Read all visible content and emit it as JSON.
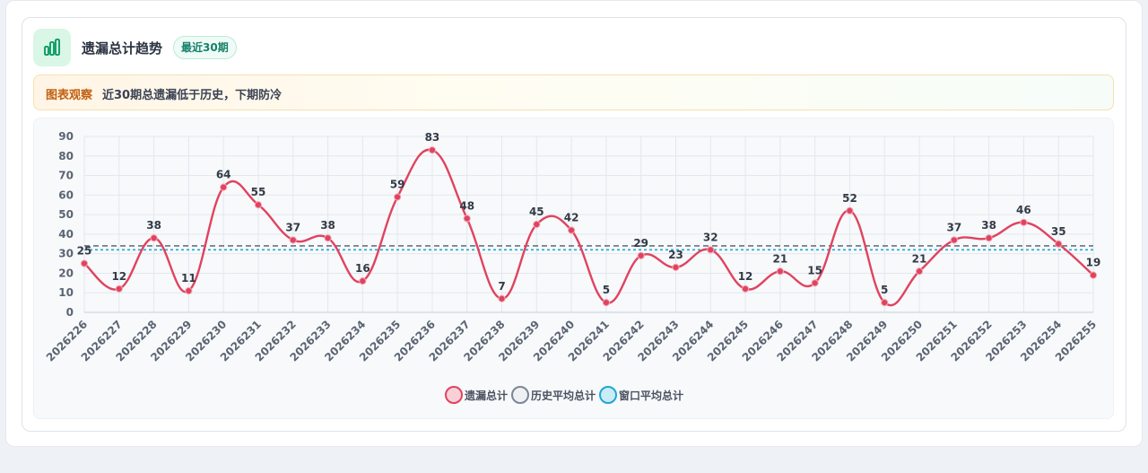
{
  "header": {
    "title": "遗漏总计趋势",
    "badge": "最近30期",
    "icon": "bar-chart-icon"
  },
  "observation": {
    "label": "图表观察",
    "text": "近30期总遗漏低于历史，下期防冷"
  },
  "legend": [
    {
      "name": "遗漏总计",
      "fill": "#f9d0d8",
      "stroke": "#e0435f"
    },
    {
      "name": "历史平均总计",
      "fill": "#eef0f4",
      "stroke": "#7d8594"
    },
    {
      "name": "窗口平均总计",
      "fill": "#c9ecf7",
      "stroke": "#1ea7d6"
    }
  ],
  "chart_data": {
    "type": "line",
    "categories": [
      "2026226",
      "2026227",
      "2026228",
      "2026229",
      "2026230",
      "2026231",
      "2026232",
      "2026233",
      "2026234",
      "2026235",
      "2026236",
      "2026237",
      "2026238",
      "2026239",
      "2026240",
      "2026241",
      "2026242",
      "2026243",
      "2026244",
      "2026245",
      "2026246",
      "2026247",
      "2026248",
      "2026249",
      "2026250",
      "2026251",
      "2026252",
      "2026253",
      "2026254",
      "2026255"
    ],
    "series": [
      {
        "name": "遗漏总计",
        "color": "#e0435f",
        "values": [
          25,
          12,
          38,
          11,
          64,
          55,
          37,
          38,
          16,
          59,
          83,
          48,
          7,
          45,
          42,
          5,
          29,
          23,
          32,
          12,
          21,
          15,
          52,
          5,
          21,
          37,
          38,
          46,
          35,
          19
        ]
      },
      {
        "name": "历史平均总计",
        "color": "#6b7280",
        "constant": 34
      },
      {
        "name": "窗口平均总计",
        "color": "#1ea7d6",
        "constant": 32
      }
    ],
    "ylim": [
      0,
      90
    ],
    "yticks": [
      0,
      10,
      20,
      30,
      40,
      50,
      60,
      70,
      80,
      90
    ],
    "grid": true,
    "legend_position": "bottom"
  }
}
